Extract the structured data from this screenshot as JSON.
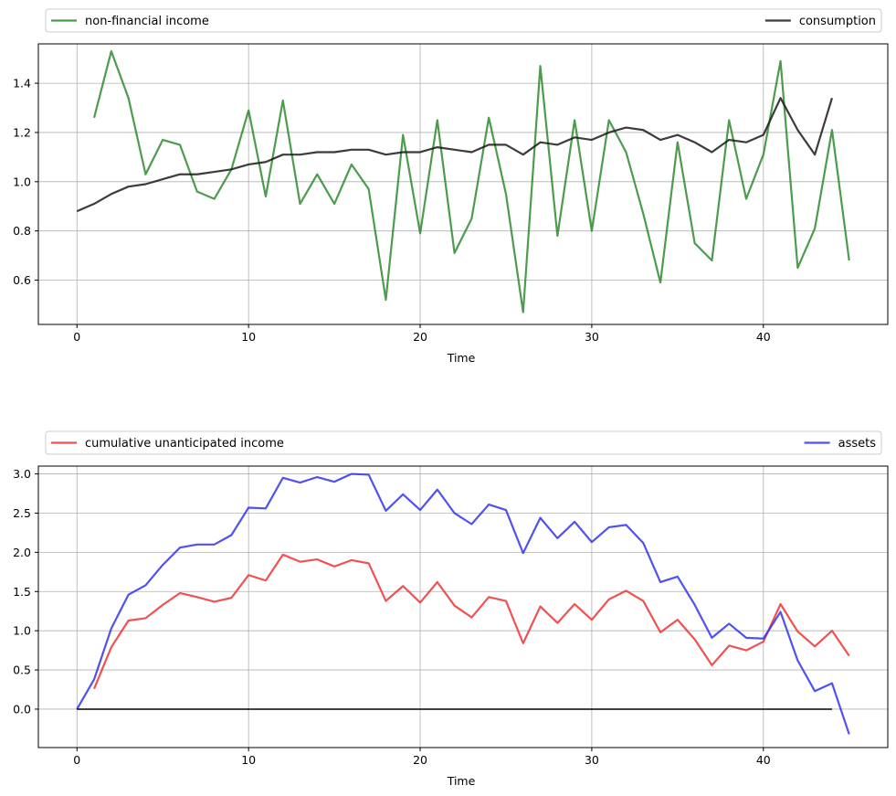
{
  "chart_data": [
    {
      "type": "line",
      "xlabel": "Time",
      "ylabel": "",
      "xlim": [
        -2.25,
        47.25
      ],
      "ylim": [
        0.42,
        1.56
      ],
      "xticks": [
        0,
        10,
        20,
        30,
        40
      ],
      "xtick_labels": [
        "0",
        "10",
        "20",
        "30",
        "40"
      ],
      "yticks": [
        0.6,
        0.8,
        1.0,
        1.2,
        1.4
      ],
      "ytick_labels": [
        "0.6",
        "0.8",
        "1.0",
        "1.2",
        "1.4"
      ],
      "grid": true,
      "legend_position": "top, outside plot, expanded",
      "series": [
        {
          "name": "non-financial income",
          "color": "#2e8b2e",
          "x": [
            1,
            2,
            3,
            4,
            5,
            6,
            7,
            8,
            9,
            10,
            11,
            12,
            13,
            14,
            15,
            16,
            17,
            18,
            19,
            20,
            21,
            22,
            23,
            24,
            25,
            26,
            27,
            28,
            29,
            30,
            31,
            32,
            33,
            34,
            35,
            36,
            37,
            38,
            39,
            40,
            41,
            42,
            43,
            44,
            45
          ],
          "values": [
            1.26,
            1.53,
            1.34,
            1.03,
            1.17,
            1.15,
            0.96,
            0.93,
            1.05,
            1.29,
            0.94,
            1.33,
            0.91,
            1.03,
            0.91,
            1.07,
            0.97,
            0.52,
            1.19,
            0.79,
            1.25,
            0.71,
            0.85,
            1.26,
            0.95,
            0.47,
            1.47,
            0.78,
            1.25,
            0.8,
            1.25,
            1.12,
            0.87,
            0.59,
            1.16,
            0.75,
            0.68,
            1.25,
            0.93,
            1.11,
            1.49,
            0.65,
            0.81,
            1.21,
            0.68
          ]
        },
        {
          "name": "consumption",
          "color": "#1a1a1a",
          "x": [
            0,
            1,
            2,
            3,
            4,
            5,
            6,
            7,
            8,
            9,
            10,
            11,
            12,
            13,
            14,
            15,
            16,
            17,
            18,
            19,
            20,
            21,
            22,
            23,
            24,
            25,
            26,
            27,
            28,
            29,
            30,
            31,
            32,
            33,
            34,
            35,
            36,
            37,
            38,
            39,
            40,
            41,
            42,
            43,
            44
          ],
          "values": [
            0.88,
            0.91,
            0.95,
            0.98,
            0.99,
            1.01,
            1.03,
            1.03,
            1.04,
            1.05,
            1.07,
            1.08,
            1.11,
            1.11,
            1.12,
            1.12,
            1.13,
            1.13,
            1.11,
            1.12,
            1.12,
            1.14,
            1.13,
            1.12,
            1.15,
            1.15,
            1.11,
            1.16,
            1.15,
            1.18,
            1.17,
            1.2,
            1.22,
            1.21,
            1.17,
            1.19,
            1.16,
            1.12,
            1.17,
            1.16,
            1.19,
            1.34,
            1.21,
            1.11,
            1.34
          ]
        }
      ]
    },
    {
      "type": "line",
      "xlabel": "Time",
      "ylabel": "",
      "xlim": [
        -2.25,
        47.25
      ],
      "ylim": [
        -0.49,
        3.1
      ],
      "xticks": [
        0,
        10,
        20,
        30,
        40
      ],
      "xtick_labels": [
        "0",
        "10",
        "20",
        "30",
        "40"
      ],
      "yticks": [
        0.0,
        0.5,
        1.0,
        1.5,
        2.0,
        2.5,
        3.0
      ],
      "ytick_labels": [
        "0.0",
        "0.5",
        "1.0",
        "1.5",
        "2.0",
        "2.5",
        "3.0"
      ],
      "grid": true,
      "legend_position": "top, outside plot, expanded",
      "series": [
        {
          "name": "cumulative unanticipated income",
          "color": "#ee3333",
          "x": [
            1,
            2,
            3,
            4,
            5,
            6,
            7,
            8,
            9,
            10,
            11,
            12,
            13,
            14,
            15,
            16,
            17,
            18,
            19,
            20,
            21,
            22,
            23,
            24,
            25,
            26,
            27,
            28,
            29,
            30,
            31,
            32,
            33,
            34,
            35,
            36,
            37,
            38,
            39,
            40,
            41,
            42,
            43,
            44,
            45
          ],
          "values": [
            0.26,
            0.79,
            1.13,
            1.16,
            1.33,
            1.48,
            1.43,
            1.37,
            1.42,
            1.71,
            1.64,
            1.97,
            1.88,
            1.91,
            1.82,
            1.9,
            1.86,
            1.38,
            1.57,
            1.36,
            1.62,
            1.32,
            1.17,
            1.43,
            1.38,
            0.84,
            1.31,
            1.1,
            1.34,
            1.14,
            1.4,
            1.51,
            1.38,
            0.98,
            1.14,
            0.89,
            0.56,
            0.81,
            0.75,
            0.86,
            1.34,
            0.99,
            0.8,
            1.0,
            0.68
          ]
        },
        {
          "name": "assets",
          "color": "#3333ee",
          "x": [
            0,
            1,
            2,
            3,
            4,
            5,
            6,
            7,
            8,
            9,
            10,
            11,
            12,
            13,
            14,
            15,
            16,
            17,
            18,
            19,
            20,
            21,
            22,
            23,
            24,
            25,
            26,
            27,
            28,
            29,
            30,
            31,
            32,
            33,
            34,
            35,
            36,
            37,
            38,
            39,
            40,
            41,
            42,
            43,
            44,
            45
          ],
          "values": [
            0.0,
            0.38,
            1.03,
            1.46,
            1.58,
            1.84,
            2.06,
            2.1,
            2.1,
            2.22,
            2.57,
            2.56,
            2.95,
            2.89,
            2.96,
            2.9,
            3.0,
            2.99,
            2.53,
            2.74,
            2.54,
            2.8,
            2.5,
            2.36,
            2.61,
            2.54,
            1.99,
            2.44,
            2.18,
            2.39,
            2.13,
            2.32,
            2.35,
            2.12,
            1.62,
            1.69,
            1.33,
            0.91,
            1.09,
            0.91,
            0.9,
            1.24,
            0.62,
            0.23,
            0.33,
            -0.32
          ]
        },
        {
          "name": "",
          "color": "#000000",
          "x": [
            0,
            44
          ],
          "values": [
            0,
            0
          ]
        }
      ]
    }
  ]
}
